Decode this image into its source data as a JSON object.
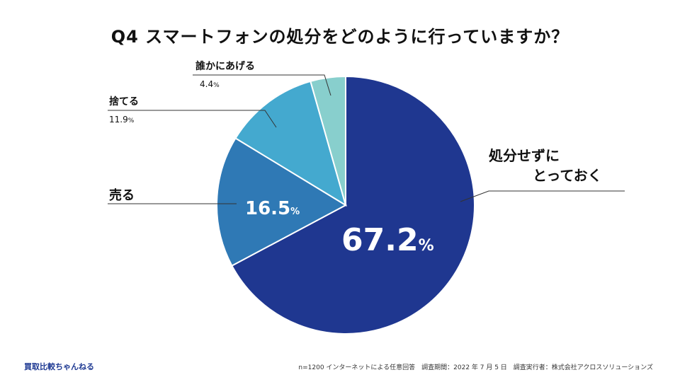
{
  "title": "Q4 スマートフォンの処分をどのように行っていますか？",
  "chart_data": {
    "type": "pie",
    "title": "Q4 スマートフォンの処分をどのように行っていますか？",
    "unit": "%",
    "slices": [
      {
        "label": "処分せずにとっておく",
        "value": 67.2,
        "color": "#1f3790"
      },
      {
        "label": "売る",
        "value": 16.5,
        "color": "#2f79b5"
      },
      {
        "label": "捨てる",
        "value": 11.9,
        "color": "#44a9cf"
      },
      {
        "label": "誰かにあげる",
        "value": 4.4,
        "color": "#88cfcd"
      }
    ]
  },
  "labels": {
    "keep_line1": "処分せずに",
    "keep_line2": "とっておく",
    "keep_value": "67.2",
    "sell": "売る",
    "sell_value": "16.5",
    "discard": "捨てる",
    "discard_value": "11.9",
    "give": "誰かにあげる",
    "give_value": "4.4",
    "unit": "%"
  },
  "footer": {
    "brand": "買取比較ちゃんねる",
    "note": "n=1200 インターネットによる任意回答　調査期間：2022 年 7 月 5 日　調査実行者：株式会社アクロスソリューションズ"
  }
}
